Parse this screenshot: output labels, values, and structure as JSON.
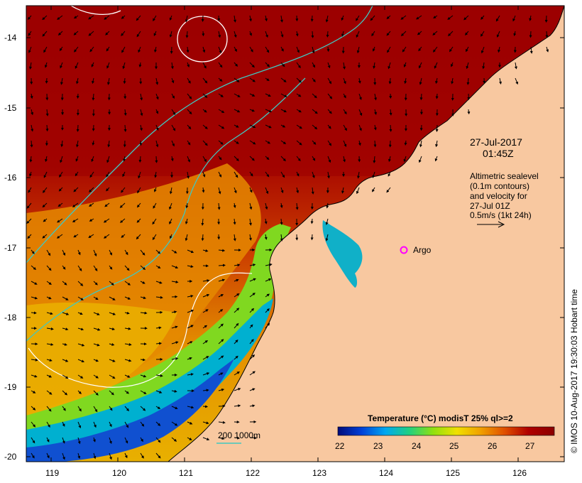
{
  "map": {
    "lat_ticks": [
      "-14",
      "-15",
      "-16",
      "-17",
      "-18",
      "-19",
      "-20"
    ],
    "lon_ticks": [
      "119",
      "120",
      "121",
      "122",
      "123",
      "124",
      "125",
      "126"
    ],
    "timestamp_date": "27-Jul-2017",
    "timestamp_time": "01:45Z",
    "legend_lines": [
      "Altimetric sealevel",
      "(0.1m contours)",
      "and velocity for",
      "27-Jul 01Z",
      "0.5m/s (1kt 24h)"
    ],
    "argo_label": "Argo",
    "bathymetry_label": "200  1000m",
    "credit": "© IMOS 10-Aug-2017 19:30:03 Hobart time",
    "colorbar": {
      "title": "Temperature (°C) modisT 25% ql>=2",
      "ticks": [
        "22",
        "23",
        "24",
        "25",
        "26",
        "27"
      ],
      "stops": [
        "#000b7a",
        "#0040d8",
        "#00a8f0",
        "#20d080",
        "#90e010",
        "#f0e000",
        "#f0a000",
        "#e05000",
        "#b00000",
        "#8c0000"
      ]
    },
    "colors": {
      "land": "#f8c8a0",
      "warm_water": "#a00000",
      "mid_water": "#e07800",
      "cool_water": "#00a0e0",
      "isobath_200": "#40c8c0",
      "contour": "#ffffff",
      "argo_marker": "#ff00ff"
    }
  }
}
